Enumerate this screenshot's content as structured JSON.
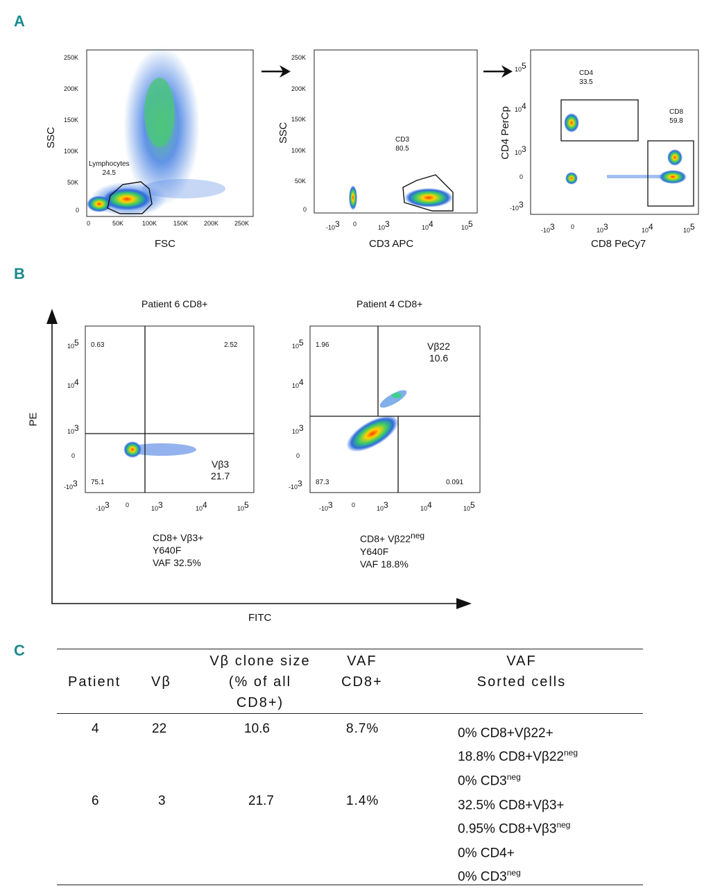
{
  "panels": {
    "a": "A",
    "b": "B",
    "c": "C"
  },
  "plot1": {
    "xlabel": "FSC",
    "ylabel": "SSC",
    "xticks": [
      "0",
      "50K",
      "100K",
      "150K",
      "200K",
      "250K"
    ],
    "yticks": [
      "250K",
      "200K",
      "150K",
      "100K",
      "50K",
      "0"
    ],
    "gate_name": "Lymphocytes",
    "gate_value": "24.5"
  },
  "plot2": {
    "xlabel": "CD3 APC",
    "ylabel": "SSC",
    "yticks": [
      "250K",
      "200K",
      "150K",
      "100K",
      "50K",
      "0"
    ],
    "xticks": [
      "-10",
      "0",
      "10",
      "10",
      "10"
    ],
    "xtick_exps": [
      "3",
      "",
      "3",
      "4",
      "5"
    ],
    "gate_name": "CD3",
    "gate_value": "80.5"
  },
  "plot3": {
    "xlabel": "CD8 PeCy7",
    "ylabel": "CD4 PerCp",
    "yticks": [
      "10",
      "10",
      "10",
      "0",
      "-10"
    ],
    "ytick_exps": [
      "5",
      "4",
      "3",
      "",
      "3"
    ],
    "xticks": [
      "-10",
      "0",
      "10",
      "10",
      "10"
    ],
    "xtick_exps": [
      "3",
      "",
      "3",
      "4",
      "5"
    ],
    "gate1_name": "CD4",
    "gate1_value": "33.5",
    "gate2_name": "CD8",
    "gate2_value": "59.8"
  },
  "plotB1": {
    "title": "Patient 6 CD8+",
    "q_ul": "0.63",
    "q_ur": "2.52",
    "q_ll": "75.1",
    "vb_name": "Vβ3",
    "vb_value": "21.7",
    "yticks": [
      "10",
      "10",
      "10",
      "0",
      "-10"
    ],
    "ytick_exps": [
      "5",
      "4",
      "3",
      "",
      "3"
    ],
    "xticks": [
      "-10",
      "0",
      "10",
      "10",
      "10"
    ],
    "xtick_exps": [
      "3",
      "",
      "3",
      "4",
      "5"
    ],
    "note1": "CD8+ Vβ3+",
    "note2": "Y640F",
    "note3": "VAF 32.5%"
  },
  "plotB2": {
    "title": "Patient 4 CD8+",
    "q_ul": "1.96",
    "q_ll": "87.3",
    "q_lr": "0.091",
    "vb_name": "Vβ22",
    "vb_value": "10.6",
    "yticks": [
      "10",
      "10",
      "10",
      "0",
      "-10"
    ],
    "ytick_exps": [
      "5",
      "4",
      "3",
      "",
      "3"
    ],
    "xticks": [
      "-10",
      "0",
      "10",
      "10",
      "10"
    ],
    "xtick_exps": [
      "3",
      "",
      "3",
      "4",
      "5"
    ],
    "note1": "CD8+ Vβ22",
    "note1_sup": "neg",
    "note2": "Y640F",
    "note3": "VAF 18.8%"
  },
  "axesB": {
    "y": "PE",
    "x": "FITC"
  },
  "table": {
    "headers": {
      "patient": "Patient",
      "vb": "Vβ",
      "clone_1": "Vβ  clone size",
      "clone_2": "(% of all",
      "clone_3": "CD8+)",
      "vaf_1": "VAF",
      "vaf_2": "CD8+",
      "sorted_1": "VAF",
      "sorted_2": "Sorted cells"
    },
    "rows": [
      {
        "patient": "4",
        "vb": "22",
        "clone": "10.6",
        "vaf": "8.7%",
        "sorted": [
          {
            "text": "0% CD8+Vβ22+",
            "sup": ""
          },
          {
            "text": "18.8% CD8+Vβ22",
            "sup": "neg"
          },
          {
            "text": "0% CD3",
            "sup": "neg"
          }
        ]
      },
      {
        "patient": "6",
        "vb": "3",
        "clone": "21.7",
        "vaf": "1.4%",
        "sorted": [
          {
            "text": "32.5% CD8+Vβ3+",
            "sup": ""
          },
          {
            "text": "0.95% CD8+Vβ3",
            "sup": "neg"
          },
          {
            "text": "0% CD4+",
            "sup": ""
          },
          {
            "text": "0% CD3",
            "sup": "neg"
          }
        ]
      }
    ]
  }
}
